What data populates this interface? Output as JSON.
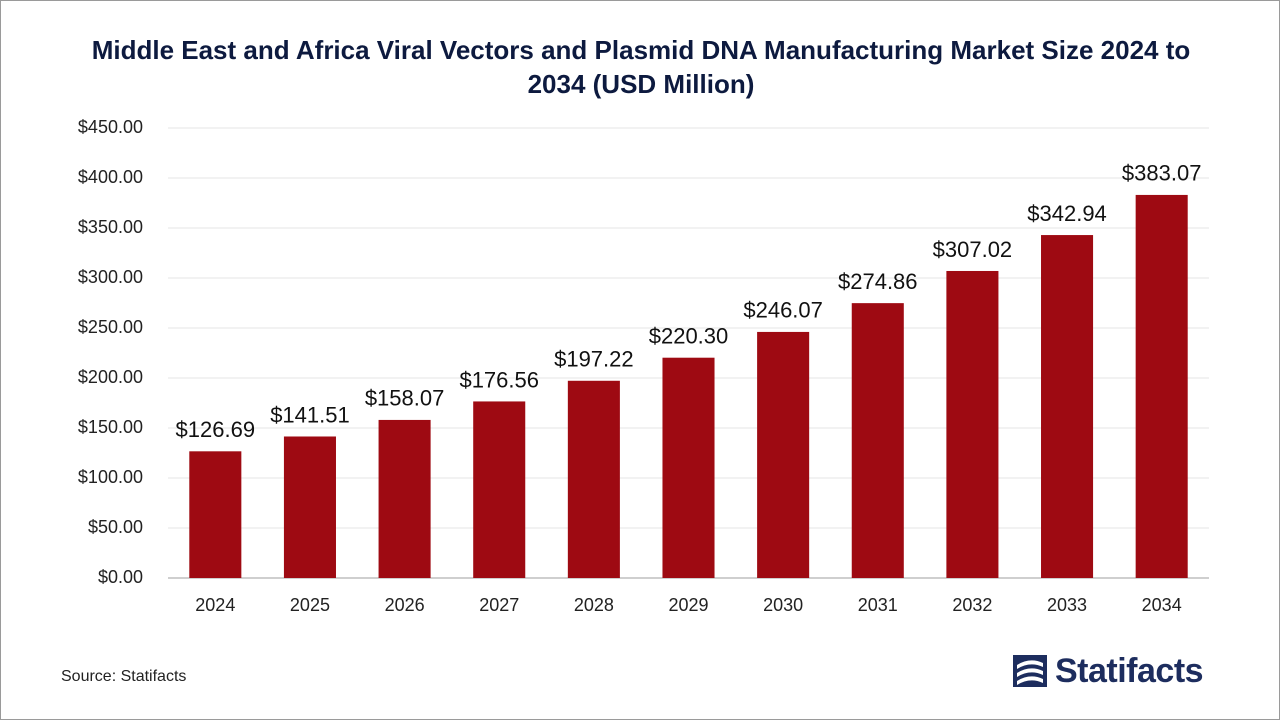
{
  "chart_data": {
    "type": "bar",
    "title": "Middle East and Africa Viral Vectors and Plasmid DNA Manufacturing Market Size 2024 to 2034 (USD Million)",
    "categories": [
      "2024",
      "2025",
      "2026",
      "2027",
      "2028",
      "2029",
      "2030",
      "2031",
      "2032",
      "2033",
      "2034"
    ],
    "values": [
      126.69,
      141.51,
      158.07,
      176.56,
      197.22,
      220.3,
      246.07,
      274.86,
      307.02,
      342.94,
      383.07
    ],
    "value_labels": [
      "$126.69",
      "$141.51",
      "$158.07",
      "$176.56",
      "$197.22",
      "$220.30",
      "$246.07",
      "$274.86",
      "$307.02",
      "$342.94",
      "$383.07"
    ],
    "color": "#9e0a12",
    "ylim": [
      0,
      450
    ],
    "yticks": [
      {
        "value": 0,
        "label": "$0.00"
      },
      {
        "value": 50,
        "label": "$50.00"
      },
      {
        "value": 100,
        "label": "$100.00"
      },
      {
        "value": 150,
        "label": "$150.00"
      },
      {
        "value": 200,
        "label": "$200.00"
      },
      {
        "value": 250,
        "label": "$250.00"
      },
      {
        "value": 300,
        "label": "$300.00"
      },
      {
        "value": 350,
        "label": "$350.00"
      },
      {
        "value": 400,
        "label": "$400.00"
      },
      {
        "value": 450,
        "label": "$450.00"
      }
    ],
    "grid": true,
    "source": "Source: Statifacts",
    "logo": "Statifacts"
  }
}
